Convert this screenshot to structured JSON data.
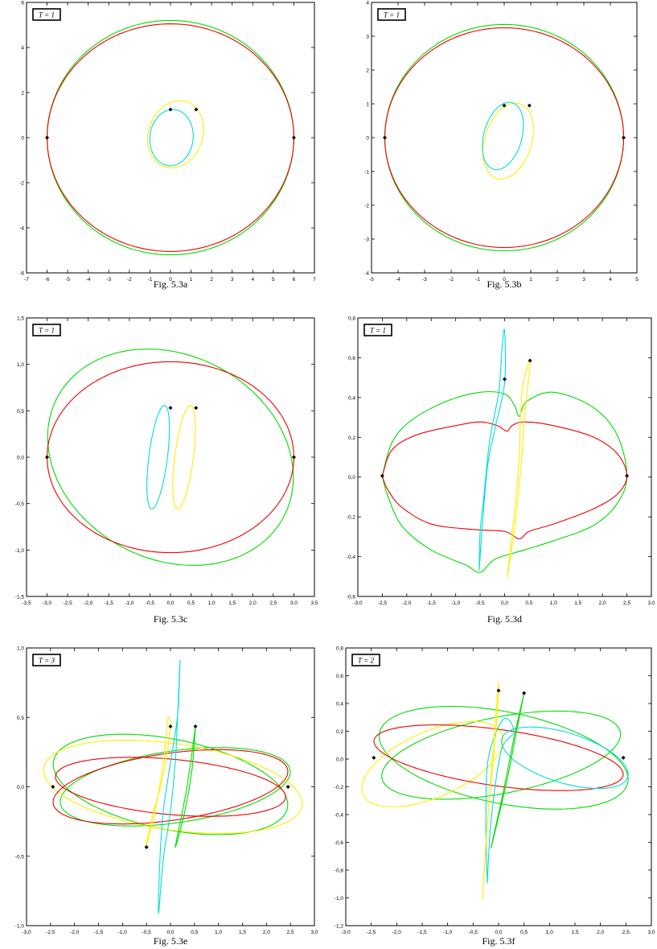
{
  "chart_data": [
    {
      "type": "line",
      "caption": "Fig. 5.3a",
      "label": "T = 1",
      "xlim": [
        -7,
        7
      ],
      "ylim": [
        -6,
        6
      ],
      "xticks": [
        "-7",
        "-6",
        "-5",
        "-4",
        "-3",
        "-2",
        "-1",
        "0",
        "1",
        "2",
        "3",
        "4",
        "5",
        "6",
        "7"
      ],
      "yticks": [
        "-6",
        "-4",
        "-2",
        "0",
        "2",
        "4",
        "6"
      ],
      "series": [
        {
          "color": "#00dd00",
          "shape": "ellipse",
          "cx": 0,
          "cy": 0,
          "rx": 6.0,
          "ry": 5.2,
          "tilt": 0
        },
        {
          "color": "#ee0000",
          "shape": "ellipse",
          "cx": 0,
          "cy": 0,
          "rx": 6.0,
          "ry": 5.05,
          "tilt": 0
        },
        {
          "color": "#ffee00",
          "shape": "ellipse",
          "cx": 0.25,
          "cy": 0.15,
          "rx": 1.3,
          "ry": 1.55,
          "tilt": -30
        },
        {
          "color": "#00dddd",
          "shape": "ellipse",
          "cx": 0.05,
          "cy": 0.0,
          "rx": 1.05,
          "ry": 1.25,
          "tilt": -10
        }
      ],
      "markers": [
        [
          -6,
          0
        ],
        [
          6,
          0
        ],
        [
          0,
          1.25
        ],
        [
          1.25,
          1.25
        ]
      ]
    },
    {
      "type": "line",
      "caption": "Fig. 5.3b",
      "label": "T = 1",
      "xlim": [
        -5,
        5
      ],
      "ylim": [
        -4,
        4
      ],
      "xticks": [
        "-5",
        "-4",
        "-3",
        "-2",
        "-1",
        "0",
        "1",
        "2",
        "3",
        "4",
        "5"
      ],
      "yticks": [
        "-4",
        "-3",
        "-2",
        "-1",
        "0",
        "1",
        "2",
        "3",
        "4"
      ],
      "series": [
        {
          "color": "#00dd00",
          "shape": "ellipse",
          "cx": 0,
          "cy": 0,
          "rx": 4.5,
          "ry": 3.35,
          "tilt": 0
        },
        {
          "color": "#ee0000",
          "shape": "ellipse",
          "cx": 0,
          "cy": 0,
          "rx": 4.5,
          "ry": 3.25,
          "tilt": 0
        },
        {
          "color": "#ffee00",
          "shape": "ellipse",
          "cx": 0.15,
          "cy": -0.1,
          "rx": 0.85,
          "ry": 1.2,
          "tilt": -30
        },
        {
          "color": "#00dddd",
          "shape": "ellipse",
          "cx": -0.05,
          "cy": 0.05,
          "rx": 0.7,
          "ry": 1.05,
          "tilt": -25
        }
      ],
      "markers": [
        [
          -4.5,
          0
        ],
        [
          4.5,
          0
        ],
        [
          0,
          0.95
        ],
        [
          0.95,
          0.95
        ]
      ]
    },
    {
      "type": "line",
      "caption": "Fig. 5.3c",
      "label": "T = 1",
      "xlim": [
        -3.5,
        3.5
      ],
      "ylim": [
        -1.75,
        1.75
      ],
      "xticks": [
        "-3,5",
        "-3,0",
        "-2,5",
        "-2,0",
        "-1,5",
        "-1,0",
        "-0,5",
        "0,0",
        "0,5",
        "1,0",
        "1,5",
        "2,0",
        "2,5",
        "3,0",
        "3,5"
      ],
      "yticks": [
        "-1,5",
        "-1,0",
        "-0,5",
        "0,0",
        "0,5",
        "1,0",
        "1,5"
      ],
      "series": [
        {
          "color": "#00dd00",
          "shape": "ellipse",
          "cx": 0,
          "cy": 0,
          "rx": 3.0,
          "ry": 1.33,
          "tilt": -6
        },
        {
          "color": "#ee0000",
          "shape": "ellipse",
          "cx": 0,
          "cy": 0,
          "rx": 3.0,
          "ry": 1.2,
          "tilt": 0
        },
        {
          "color": "#00dddd",
          "shape": "ellipse",
          "cx": -0.3,
          "cy": 0.0,
          "rx": 0.22,
          "ry": 0.67,
          "tilt": -15
        },
        {
          "color": "#ffee00",
          "shape": "ellipse",
          "cx": 0.33,
          "cy": 0.0,
          "rx": 0.22,
          "ry": 0.67,
          "tilt": -15
        }
      ],
      "markers": [
        [
          -3,
          0
        ],
        [
          3,
          0
        ],
        [
          0,
          0.62
        ],
        [
          0.62,
          0.62
        ]
      ]
    },
    {
      "type": "line",
      "caption": "Fig. 5.3d",
      "label": "T = 1",
      "xlim": [
        -3.0,
        3.0
      ],
      "ylim": [
        -0.65,
        0.85
      ],
      "xticks": [
        "-3,0",
        "-2,5",
        "-2,0",
        "-1,5",
        "-1,0",
        "-0,5",
        "0,0",
        "0,5",
        "1,0",
        "1,5",
        "2,0",
        "2,5",
        "3,0"
      ],
      "yticks": [
        "-0,6",
        "-0,4",
        "-0,2",
        "0,0",
        "0,2",
        "0,4",
        "0,6",
        "0,8"
      ],
      "series": [
        {
          "color": "#00dd00",
          "shape": "path",
          "points": [
            [
              -2.5,
              0
            ],
            [
              -2.3,
              0.18
            ],
            [
              -1.9,
              0.3
            ],
            [
              -1.2,
              0.4
            ],
            [
              -0.5,
              0.45
            ],
            [
              0,
              0.44
            ],
            [
              0.2,
              0.38
            ],
            [
              0.3,
              0.32
            ],
            [
              0.45,
              0.4
            ],
            [
              1.0,
              0.45
            ],
            [
              1.8,
              0.37
            ],
            [
              2.3,
              0.22
            ],
            [
              2.5,
              0
            ],
            [
              2.3,
              -0.15
            ],
            [
              1.8,
              -0.27
            ],
            [
              1.0,
              -0.35
            ],
            [
              0.4,
              -0.4
            ],
            [
              -0.2,
              -0.45
            ],
            [
              -0.5,
              -0.52
            ],
            [
              -0.8,
              -0.48
            ],
            [
              -1.5,
              -0.4
            ],
            [
              -2.1,
              -0.27
            ],
            [
              -2.4,
              -0.1
            ],
            [
              -2.5,
              0
            ]
          ]
        },
        {
          "color": "#ee0000",
          "shape": "path",
          "points": [
            [
              -2.5,
              0
            ],
            [
              -2.3,
              0.14
            ],
            [
              -1.8,
              0.22
            ],
            [
              -1.0,
              0.27
            ],
            [
              -0.5,
              0.29
            ],
            [
              -0.15,
              0.27
            ],
            [
              0.05,
              0.24
            ],
            [
              0.15,
              0.27
            ],
            [
              0.4,
              0.29
            ],
            [
              1.0,
              0.27
            ],
            [
              1.8,
              0.21
            ],
            [
              2.3,
              0.12
            ],
            [
              2.5,
              0
            ],
            [
              2.3,
              -0.1
            ],
            [
              1.8,
              -0.18
            ],
            [
              1.0,
              -0.26
            ],
            [
              0.5,
              -0.3
            ],
            [
              0.3,
              -0.34
            ],
            [
              0.0,
              -0.3
            ],
            [
              -0.6,
              -0.29
            ],
            [
              -1.5,
              -0.26
            ],
            [
              -2.1,
              -0.17
            ],
            [
              -2.4,
              -0.07
            ],
            [
              -2.5,
              0
            ]
          ]
        },
        {
          "color": "#00dddd",
          "shape": "path",
          "points": [
            [
              -0.52,
              -0.51
            ],
            [
              -0.5,
              -0.3
            ],
            [
              -0.42,
              -0.1
            ],
            [
              -0.3,
              0.2
            ],
            [
              -0.12,
              0.45
            ],
            [
              -0.05,
              0.7
            ],
            [
              0.0,
              0.78
            ],
            [
              0.0,
              0.5
            ],
            [
              -0.2,
              0.25
            ],
            [
              -0.35,
              0.05
            ],
            [
              -0.45,
              -0.25
            ],
            [
              -0.52,
              -0.51
            ]
          ]
        },
        {
          "color": "#ffee00",
          "shape": "path",
          "points": [
            [
              0.05,
              -0.55
            ],
            [
              0.2,
              -0.2
            ],
            [
              0.3,
              0.1
            ],
            [
              0.32,
              0.3
            ],
            [
              0.38,
              0.5
            ],
            [
              0.52,
              0.62
            ],
            [
              0.48,
              0.5
            ],
            [
              0.4,
              0.3
            ],
            [
              0.35,
              0.1
            ],
            [
              0.22,
              -0.25
            ],
            [
              0.05,
              -0.55
            ]
          ]
        }
      ],
      "markers": [
        [
          -2.5,
          0
        ],
        [
          2.5,
          0
        ],
        [
          0,
          0.52
        ],
        [
          0.52,
          0.62
        ]
      ]
    },
    {
      "type": "line",
      "caption": "Fig. 5.3e",
      "label": "T = 3",
      "xlim": [
        -3.0,
        3.0
      ],
      "ylim": [
        -1.15,
        1.15
      ],
      "xticks": [
        "-3,0",
        "-2,5",
        "-2,0",
        "-1,5",
        "-1,0",
        "-0,5",
        "0,0",
        "0,5",
        "1,0",
        "1,5",
        "2,0",
        "2,5",
        "3,0"
      ],
      "yticks": [
        "-1,0",
        "-0,5",
        "0,0",
        "0,5",
        "1,0"
      ],
      "series": [
        {
          "color": "#00dd00",
          "shape": "ellipse",
          "cx": 0,
          "cy": 0.02,
          "rx": 2.45,
          "ry": 0.38,
          "tilt": -4
        },
        {
          "color": "#00dd00",
          "shape": "ellipse",
          "cx": 0.1,
          "cy": 0,
          "rx": 2.4,
          "ry": 0.3,
          "tilt": 3
        },
        {
          "color": "#ffee00",
          "shape": "ellipse",
          "cx": 0.05,
          "cy": 0,
          "rx": 2.7,
          "ry": 0.36,
          "tilt": -3
        },
        {
          "color": "#ee0000",
          "shape": "ellipse",
          "cx": 0,
          "cy": 0,
          "rx": 2.4,
          "ry": 0.23,
          "tilt": -2
        },
        {
          "color": "#ee0000",
          "shape": "ellipse",
          "cx": 0,
          "cy": 0,
          "rx": 2.45,
          "ry": 0.28,
          "tilt": 3
        },
        {
          "color": "#00dddd",
          "shape": "path",
          "points": [
            [
              0.2,
              1.05
            ],
            [
              0.15,
              0.6
            ],
            [
              0.1,
              0.2
            ],
            [
              0.0,
              -0.2
            ],
            [
              -0.15,
              -0.6
            ],
            [
              -0.25,
              -1.05
            ],
            [
              -0.22,
              -0.6
            ],
            [
              -0.15,
              -0.2
            ],
            [
              0.0,
              0.2
            ],
            [
              0.15,
              0.6
            ],
            [
              0.2,
              1.05
            ]
          ]
        },
        {
          "color": "#ffee00",
          "shape": "path",
          "points": [
            [
              -0.05,
              0.58
            ],
            [
              -0.15,
              0.2
            ],
            [
              -0.35,
              -0.25
            ],
            [
              -0.52,
              -0.5
            ],
            [
              -0.35,
              -0.2
            ],
            [
              -0.15,
              0.1
            ],
            [
              0.0,
              0.5
            ],
            [
              -0.05,
              0.58
            ]
          ]
        },
        {
          "color": "#00dd00",
          "shape": "path",
          "points": [
            [
              0.52,
              0.5
            ],
            [
              0.42,
              0.2
            ],
            [
              0.3,
              -0.1
            ],
            [
              0.1,
              -0.5
            ],
            [
              0.3,
              -0.2
            ],
            [
              0.45,
              0.15
            ],
            [
              0.52,
              0.5
            ]
          ]
        }
      ],
      "markers": [
        [
          -2.45,
          0
        ],
        [
          2.45,
          0
        ],
        [
          0,
          0.5
        ],
        [
          0.52,
          0.5
        ],
        [
          -0.5,
          -0.5
        ]
      ]
    },
    {
      "type": "line",
      "caption": "Fig. 5.3f",
      "label": "T = 2",
      "xlim": [
        -3.0,
        3.0
      ],
      "ylim": [
        -1.3,
        0.85
      ],
      "xticks": [
        "-3,0",
        "-2,5",
        "-2,0",
        "-1,5",
        "-1,0",
        "-0,5",
        "0,0",
        "0,5",
        "1,0",
        "1,5",
        "2,0",
        "2,5",
        "3,0"
      ],
      "yticks": [
        "-1,2",
        "-1,0",
        "-0,8",
        "-0,6",
        "-0,4",
        "-0,2",
        "0,0",
        "0,2",
        "0,4",
        "0,6",
        "0,8"
      ],
      "series": [
        {
          "color": "#00dd00",
          "shape": "ellipse",
          "cx": 0.1,
          "cy": 0,
          "rx": 2.45,
          "ry": 0.36,
          "tilt": -4
        },
        {
          "color": "#00dd00",
          "shape": "ellipse",
          "cx": 0.05,
          "cy": 0.02,
          "rx": 2.35,
          "ry": 0.3,
          "tilt": 4
        },
        {
          "color": "#ffee00",
          "shape": "ellipse",
          "cx": -1.3,
          "cy": -0.05,
          "rx": 1.4,
          "ry": 0.27,
          "tilt": 8
        },
        {
          "color": "#ee0000",
          "shape": "ellipse",
          "cx": 0,
          "cy": 0,
          "rx": 2.45,
          "ry": 0.22,
          "tilt": -3
        },
        {
          "color": "#00dddd",
          "shape": "ellipse",
          "cx": 1.3,
          "cy": 0,
          "rx": 1.25,
          "ry": 0.2,
          "tilt": -6
        },
        {
          "color": "#00dddd",
          "shape": "path",
          "points": [
            [
              -0.22,
              -0.97
            ],
            [
              -0.25,
              -0.5
            ],
            [
              -0.2,
              0.0
            ],
            [
              0.1,
              0.3
            ],
            [
              0.3,
              0.2
            ],
            [
              0.05,
              0.05
            ],
            [
              -0.15,
              -0.5
            ],
            [
              -0.22,
              -0.97
            ]
          ]
        },
        {
          "color": "#ffee00",
          "shape": "path",
          "points": [
            [
              -0.32,
              -1.1
            ],
            [
              -0.2,
              -0.4
            ],
            [
              -0.1,
              0.1
            ],
            [
              0.0,
              0.58
            ],
            [
              -0.05,
              0.2
            ],
            [
              -0.2,
              -0.4
            ],
            [
              -0.32,
              -1.1
            ]
          ]
        },
        {
          "color": "#00dd00",
          "shape": "path",
          "points": [
            [
              0.5,
              0.5
            ],
            [
              0.3,
              0.15
            ],
            [
              0.1,
              -0.25
            ],
            [
              -0.15,
              -0.7
            ],
            [
              0.15,
              -0.2
            ],
            [
              0.35,
              0.2
            ],
            [
              0.5,
              0.5
            ]
          ]
        }
      ],
      "markers": [
        [
          -2.45,
          0
        ],
        [
          2.45,
          0
        ],
        [
          0,
          0.52
        ],
        [
          0.5,
          0.5
        ]
      ]
    }
  ]
}
